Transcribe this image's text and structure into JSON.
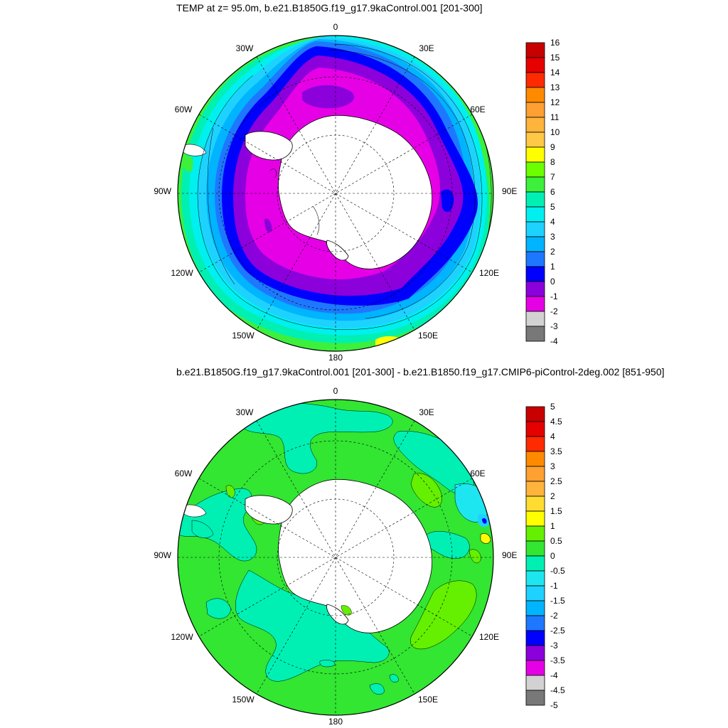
{
  "panels": [
    {
      "title": "TEMP at z=  95.0m, b.e21.B1850G.f19_g17.9kaControl.001 [201-300]",
      "lon_labels": [
        "0",
        "30E",
        "60E",
        "90E",
        "120E",
        "150E",
        "180",
        "150W",
        "120W",
        "90W",
        "60W",
        "30W"
      ],
      "colorbar_labels": [
        "16",
        "15",
        "14",
        "13",
        "12",
        "11",
        "10",
        "9",
        "8",
        "7",
        "6",
        "5",
        "4",
        "3",
        "2",
        "1",
        "0",
        "-1",
        "-2",
        "-3",
        "-4"
      ],
      "colorbar_colors": [
        "#c80000",
        "#e60000",
        "#ff2a00",
        "#ff8a00",
        "#ffa032",
        "#ffb43c",
        "#ffc846",
        "#ffff00",
        "#6cff00",
        "#3cf03c",
        "#00f0b4",
        "#00f0f0",
        "#1ed2ff",
        "#00b4ff",
        "#1e78ff",
        "#0000ff",
        "#8c00dc",
        "#e600e6",
        "#d2d2d2",
        "#787878"
      ]
    },
    {
      "title": "b.e21.B1850G.f19_g17.9kaControl.001 [201-300] - b.e21.B1850.f19_g17.CMIP6-piControl-2deg.002 [851-950]",
      "lon_labels": [
        "0",
        "30E",
        "60E",
        "90E",
        "120E",
        "150E",
        "180",
        "150W",
        "120W",
        "90W",
        "60W",
        "30W"
      ],
      "colorbar_labels": [
        "5",
        "4.5",
        "4",
        "3.5",
        "3",
        "2.5",
        "2",
        "1.5",
        "1",
        "0.5",
        "0",
        "-0.5",
        "-1",
        "-1.5",
        "-2",
        "-2.5",
        "-3",
        "-3.5",
        "-4",
        "-4.5",
        "-5"
      ],
      "colorbar_colors": [
        "#c80000",
        "#e60000",
        "#ff2a00",
        "#ff8a00",
        "#ffa032",
        "#ffb43c",
        "#ffdc32",
        "#ffff00",
        "#64f000",
        "#32e632",
        "#00f0b4",
        "#1ee6f0",
        "#1ed2ff",
        "#00b4ff",
        "#1e78ff",
        "#0000ff",
        "#8c00dc",
        "#e600e6",
        "#d2d2d2",
        "#787878"
      ]
    }
  ]
}
